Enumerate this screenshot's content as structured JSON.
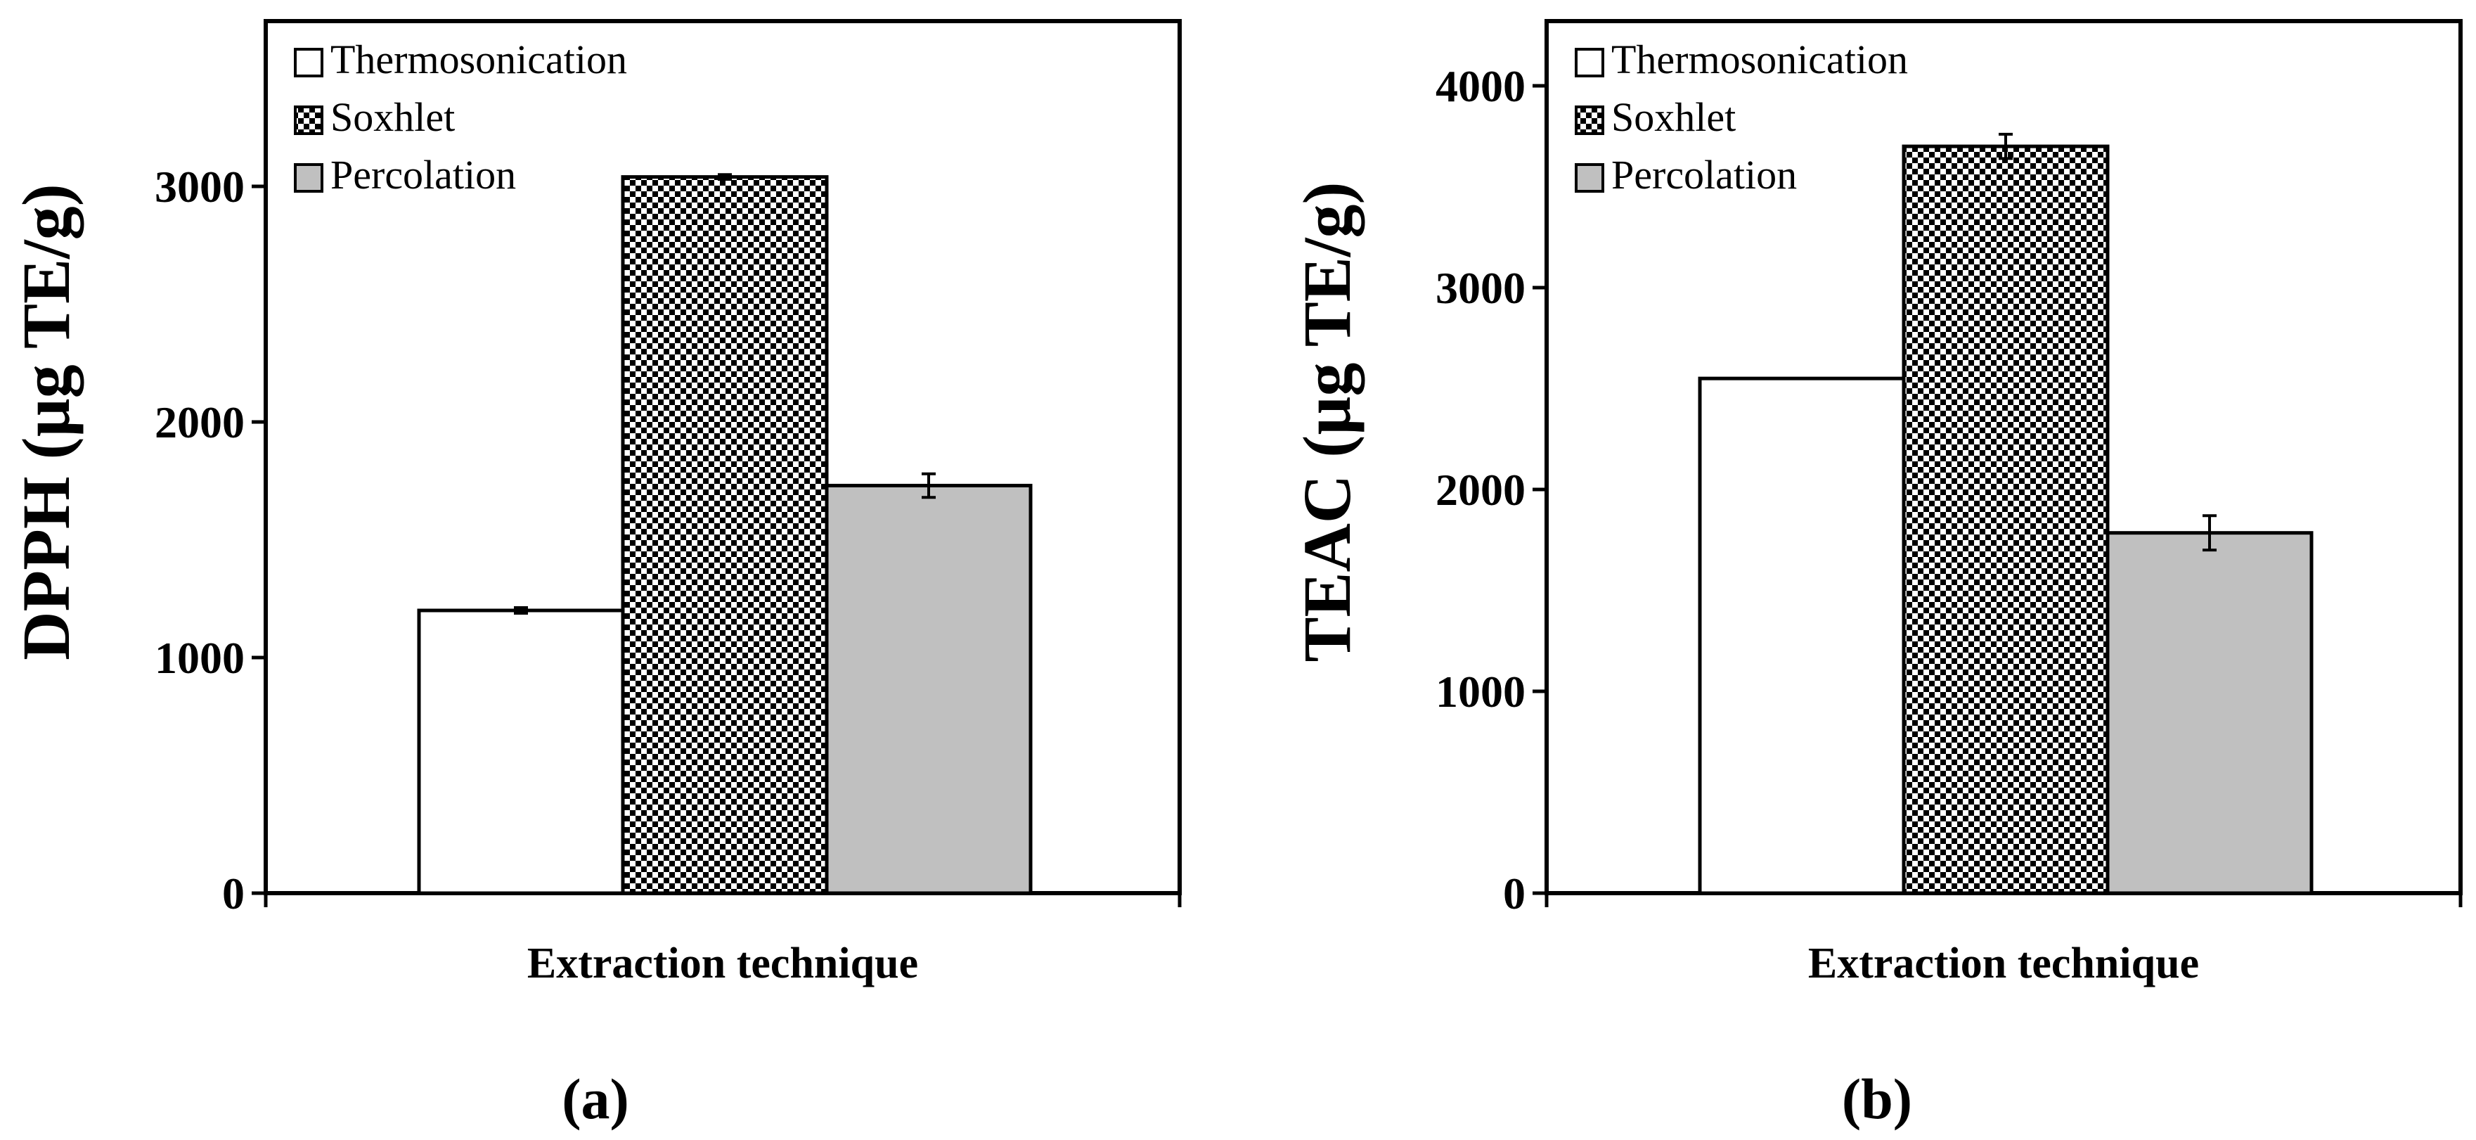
{
  "colors": {
    "thermosonication": "#ffffff",
    "soxhlet_pattern": "checker-dots",
    "percolation": "#c0c0c0",
    "axis": "#000000"
  },
  "chart_data": [
    {
      "type": "bar",
      "panel_label": "(a)",
      "categories": [
        "Thermosonication",
        "Soxhlet",
        "Percolation"
      ],
      "values": [
        1200,
        3040,
        1730
      ],
      "errors": [
        12,
        10,
        50
      ],
      "xlabel": "Extraction technique",
      "ylabel": "DPPH (µg TE/g)",
      "ylim": [
        0,
        3000
      ],
      "yticks": [
        "0",
        "1000",
        "2000",
        "3000"
      ],
      "legend": {
        "position": "top-left",
        "entries": [
          "Thermosonication",
          "Soxhlet",
          "Percolation"
        ]
      },
      "grid": false
    },
    {
      "type": "bar",
      "panel_label": "(b)",
      "categories": [
        "Thermosonication",
        "Soxhlet",
        "Percolation"
      ],
      "values": [
        2550,
        3700,
        1785
      ],
      "errors": [
        0,
        60,
        85
      ],
      "xlabel": "Extraction technique",
      "ylabel": "TEAC (µg TE/g)",
      "ylim": [
        0,
        4000
      ],
      "yticks": [
        "0",
        "1000",
        "2000",
        "3000",
        "4000"
      ],
      "legend": {
        "position": "top-left",
        "entries": [
          "Thermosonication",
          "Soxhlet",
          "Percolation"
        ]
      },
      "grid": false
    }
  ]
}
